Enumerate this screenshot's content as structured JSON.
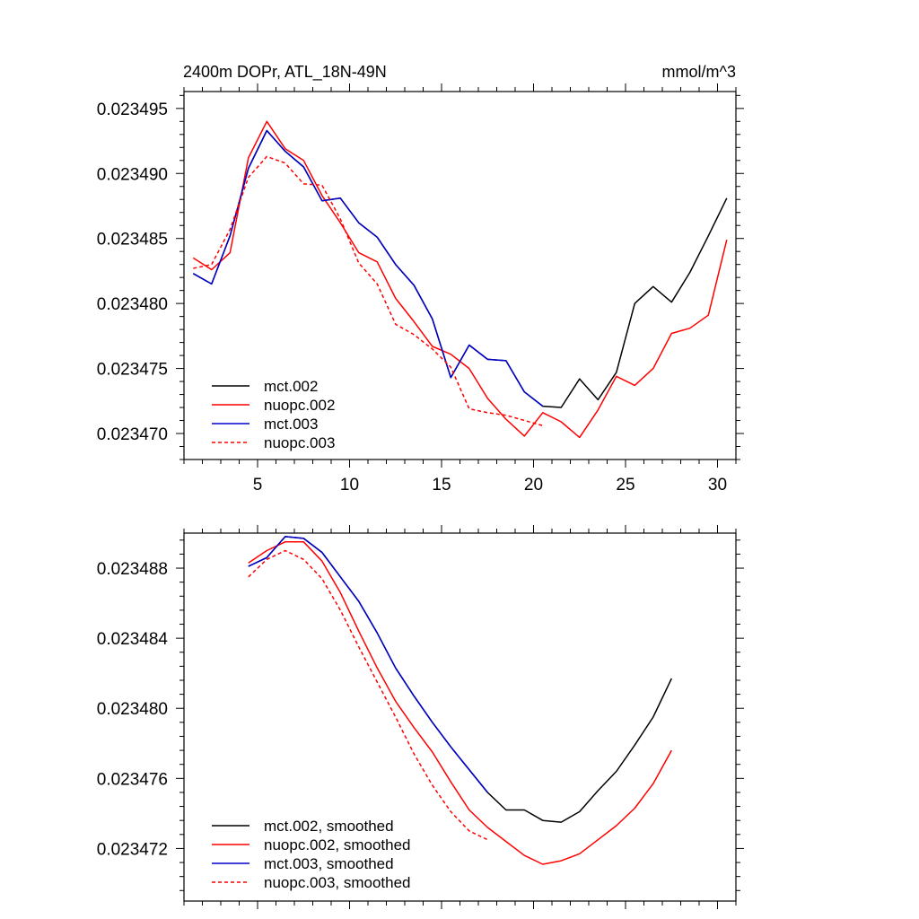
{
  "chart_data": [
    {
      "type": "line",
      "title_left": "2400m DOPr, ATL_18N-49N",
      "title_right": "mmol/m^3",
      "xlim": [
        1,
        31
      ],
      "ylim": [
        0.023468,
        0.0234963
      ],
      "xticks": [
        5,
        10,
        15,
        20,
        25,
        30
      ],
      "xtick_labels": [
        "5",
        "10",
        "15",
        "20",
        "25",
        "30"
      ],
      "yticks": [
        0.02347,
        0.023475,
        0.02348,
        0.023485,
        0.02349,
        0.023495
      ],
      "ytick_labels": [
        "0.023470",
        "0.023475",
        "0.023480",
        "0.023485",
        "0.023490",
        "0.023495"
      ],
      "show_xtick_labels": true,
      "legend_position": "bottom-left",
      "series": [
        {
          "name": "mct.002",
          "color": "#000000",
          "dash": "solid",
          "x": [
            1.5,
            2.5,
            3.5,
            4.5,
            5.5,
            6.5,
            7.5,
            8.5,
            9.5,
            10.5,
            11.5,
            12.5,
            13.5,
            14.5,
            15.5,
            16.5,
            17.5,
            18.5,
            19.5,
            20.5,
            21.5,
            22.5,
            23.5,
            24.5,
            25.5,
            26.5,
            27.5,
            28.5,
            29.5,
            30.5
          ],
          "y": [
            0.0234823,
            0.0234815,
            0.0234852,
            0.0234904,
            0.0234933,
            0.0234917,
            0.0234905,
            0.0234879,
            0.0234881,
            0.0234862,
            0.0234851,
            0.023483,
            0.0234814,
            0.0234788,
            0.0234743,
            0.0234768,
            0.0234757,
            0.0234756,
            0.0234732,
            0.0234721,
            0.023472,
            0.0234742,
            0.0234726,
            0.0234747,
            0.02348,
            0.0234813,
            0.0234801,
            0.0234824,
            0.0234852,
            0.0234881
          ]
        },
        {
          "name": "nuopc.002",
          "color": "#ff0000",
          "dash": "solid",
          "x": [
            1.5,
            2.5,
            3.5,
            4.5,
            5.5,
            6.5,
            7.5,
            8.5,
            9.5,
            10.5,
            11.5,
            12.5,
            13.5,
            14.5,
            15.5,
            16.5,
            17.5,
            18.5,
            19.5,
            20.5,
            21.5,
            22.5,
            23.5,
            24.5,
            25.5,
            26.5,
            27.5,
            28.5,
            29.5,
            30.5
          ],
          "y": [
            0.0234835,
            0.0234826,
            0.0234839,
            0.0234912,
            0.023494,
            0.0234919,
            0.023491,
            0.0234883,
            0.0234862,
            0.0234839,
            0.0234832,
            0.0234804,
            0.0234786,
            0.0234767,
            0.0234761,
            0.023475,
            0.0234727,
            0.0234711,
            0.0234698,
            0.0234716,
            0.0234709,
            0.0234697,
            0.0234718,
            0.0234744,
            0.0234737,
            0.023475,
            0.0234777,
            0.0234781,
            0.0234791,
            0.0234849
          ]
        },
        {
          "name": "mct.003",
          "color": "#0000cc",
          "dash": "solid",
          "x": [
            1.5,
            2.5,
            3.5,
            4.5,
            5.5,
            6.5,
            7.5,
            8.5,
            9.5,
            10.5,
            11.5,
            12.5,
            13.5,
            14.5,
            15.5,
            16.5,
            17.5,
            18.5,
            19.5,
            20.5
          ],
          "y": [
            0.0234823,
            0.0234815,
            0.0234852,
            0.0234904,
            0.0234933,
            0.0234917,
            0.0234905,
            0.0234879,
            0.0234881,
            0.0234862,
            0.0234851,
            0.023483,
            0.0234814,
            0.0234788,
            0.0234743,
            0.0234768,
            0.0234757,
            0.0234756,
            0.0234732,
            0.0234721
          ]
        },
        {
          "name": "nuopc.003",
          "color": "#ff0000",
          "dash": "dashed",
          "x": [
            1.5,
            2.5,
            3.5,
            4.5,
            5.5,
            6.5,
            7.5,
            8.5,
            9.5,
            10.5,
            11.5,
            12.5,
            13.5,
            14.5,
            15.5,
            16.5,
            17.5,
            18.5,
            19.5,
            20.5
          ],
          "y": [
            0.0234827,
            0.023483,
            0.0234857,
            0.0234897,
            0.0234913,
            0.0234908,
            0.0234892,
            0.0234891,
            0.0234865,
            0.0234831,
            0.0234815,
            0.0234784,
            0.0234776,
            0.0234765,
            0.0234751,
            0.0234719,
            0.0234716,
            0.0234714,
            0.023471,
            0.0234706
          ]
        }
      ]
    },
    {
      "type": "line",
      "title_left": "",
      "title_right": "",
      "xlim": [
        1,
        31
      ],
      "ylim": [
        0.023469,
        0.02349
      ],
      "xticks": [
        5,
        10,
        15,
        20,
        25,
        30
      ],
      "xtick_labels": [
        "5",
        "10",
        "15",
        "20",
        "25",
        "30"
      ],
      "yticks": [
        0.023472,
        0.023476,
        0.02348,
        0.023484,
        0.023488
      ],
      "ytick_labels": [
        "0.023472",
        "0.023476",
        "0.023480",
        "0.023484",
        "0.023488"
      ],
      "show_xtick_labels": false,
      "legend_position": "bottom-left",
      "series": [
        {
          "name": "mct.002, smoothed",
          "color": "#000000",
          "dash": "solid",
          "x": [
            4.5,
            5.5,
            6.5,
            7.5,
            8.5,
            9.5,
            10.5,
            11.5,
            12.5,
            13.5,
            14.5,
            15.5,
            16.5,
            17.5,
            18.5,
            19.5,
            20.5,
            21.5,
            22.5,
            23.5,
            24.5,
            25.5,
            26.5,
            27.5
          ],
          "y": [
            0.0234881,
            0.0234886,
            0.0234898,
            0.0234897,
            0.0234889,
            0.0234875,
            0.0234861,
            0.0234843,
            0.0234823,
            0.0234807,
            0.0234792,
            0.0234778,
            0.0234765,
            0.0234752,
            0.0234742,
            0.0234742,
            0.0234736,
            0.0234735,
            0.0234741,
            0.0234753,
            0.0234764,
            0.0234779,
            0.0234795,
            0.0234817
          ]
        },
        {
          "name": "nuopc.002, smoothed",
          "color": "#ff0000",
          "dash": "solid",
          "x": [
            4.5,
            5.5,
            6.5,
            7.5,
            8.5,
            9.5,
            10.5,
            11.5,
            12.5,
            13.5,
            14.5,
            15.5,
            16.5,
            17.5,
            18.5,
            19.5,
            20.5,
            21.5,
            22.5,
            23.5,
            24.5,
            25.5,
            26.5,
            27.5
          ],
          "y": [
            0.0234883,
            0.023489,
            0.0234895,
            0.0234895,
            0.0234884,
            0.0234866,
            0.0234844,
            0.0234823,
            0.0234804,
            0.0234789,
            0.0234775,
            0.0234758,
            0.0234742,
            0.0234732,
            0.0234724,
            0.0234716,
            0.0234711,
            0.0234713,
            0.0234717,
            0.0234725,
            0.0234733,
            0.0234743,
            0.0234757,
            0.0234776
          ]
        },
        {
          "name": "mct.003, smoothed",
          "color": "#0000cc",
          "dash": "solid",
          "x": [
            4.5,
            5.5,
            6.5,
            7.5,
            8.5,
            9.5,
            10.5,
            11.5,
            12.5,
            13.5,
            14.5,
            15.5,
            16.5,
            17.5
          ],
          "y": [
            0.0234881,
            0.0234886,
            0.0234898,
            0.0234897,
            0.0234889,
            0.0234875,
            0.0234861,
            0.0234843,
            0.0234823,
            0.0234807,
            0.0234792,
            0.0234778,
            0.0234765,
            0.0234752
          ]
        },
        {
          "name": "nuopc.003, smoothed",
          "color": "#ff0000",
          "dash": "dashed",
          "x": [
            4.5,
            5.5,
            6.5,
            7.5,
            8.5,
            9.5,
            10.5,
            11.5,
            12.5,
            13.5,
            14.5,
            15.5,
            16.5,
            17.5
          ],
          "y": [
            0.0234875,
            0.0234885,
            0.023489,
            0.0234885,
            0.0234874,
            0.0234856,
            0.0234835,
            0.0234815,
            0.0234795,
            0.0234774,
            0.0234756,
            0.0234741,
            0.023473,
            0.0234725
          ]
        }
      ]
    }
  ]
}
